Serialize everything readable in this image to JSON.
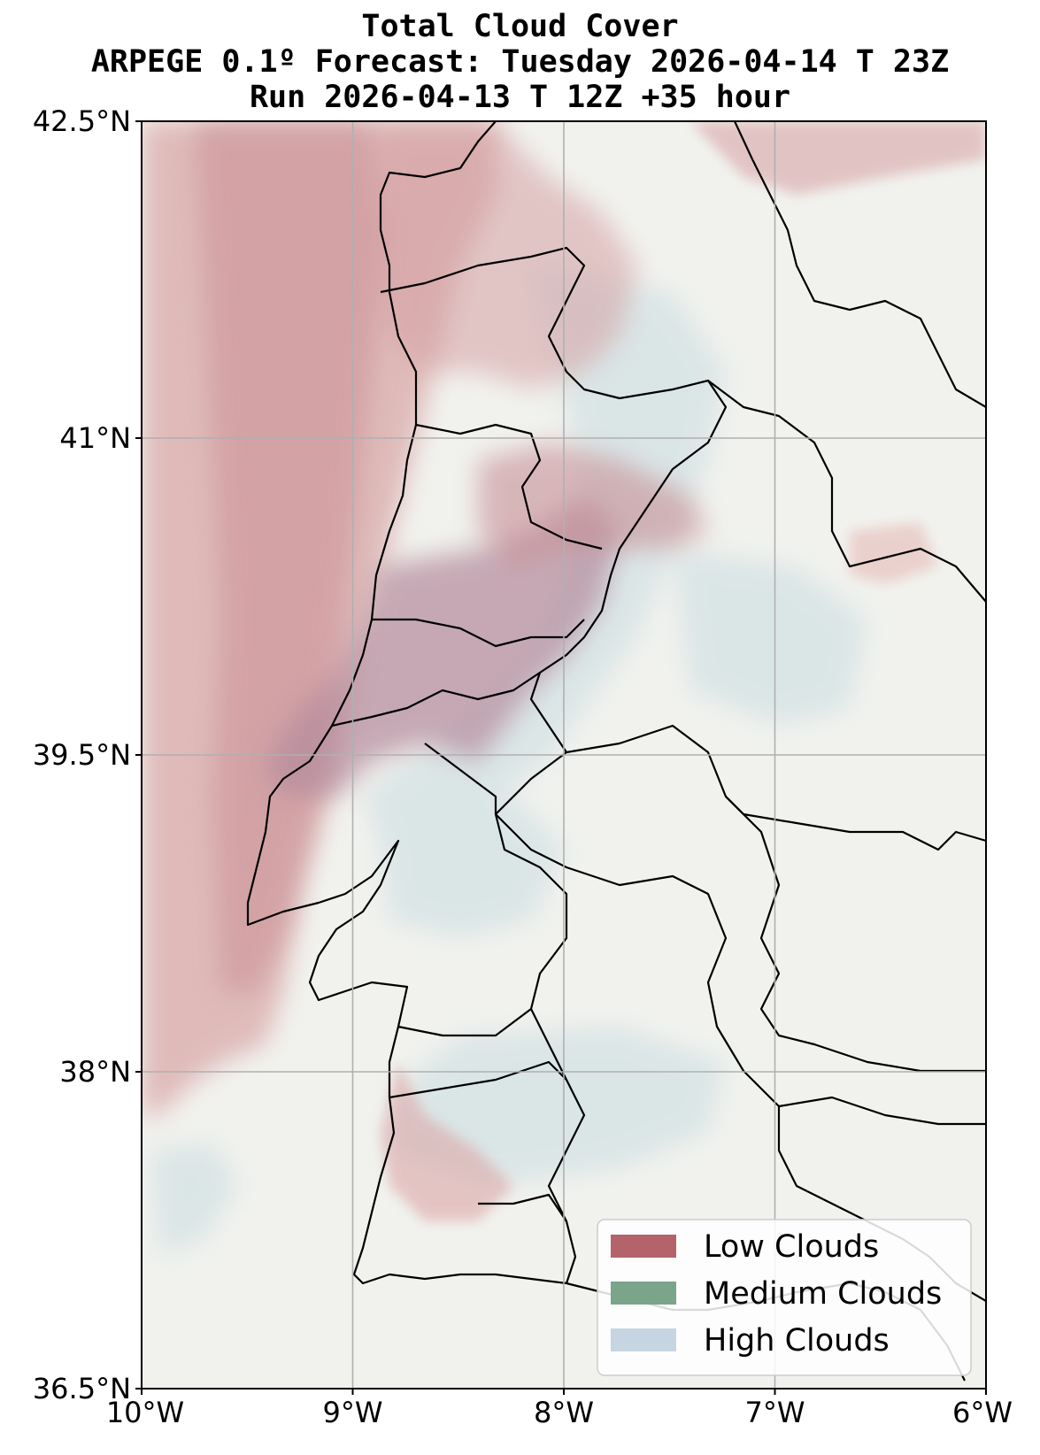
{
  "title": {
    "line1": "Total Cloud Cover",
    "line2": "ARPEGE 0.1º Forecast: Tuesday 2026-04-14 T 23Z",
    "line3": "Run 2026-04-13 T 12Z +35 hour"
  },
  "map": {
    "lon_range": [
      -10,
      -6
    ],
    "lat_range": [
      36.5,
      42.5
    ],
    "lon_ticks": [
      {
        "value": -10,
        "label": "10°W"
      },
      {
        "value": -9,
        "label": "9°W"
      },
      {
        "value": -8,
        "label": "8°W"
      },
      {
        "value": -7,
        "label": "7°W"
      },
      {
        "value": -6,
        "label": "6°W"
      }
    ],
    "lat_ticks": [
      {
        "value": 42.5,
        "label": "42.5°N"
      },
      {
        "value": 41,
        "label": "41°N"
      },
      {
        "value": 39.5,
        "label": "39.5°N"
      },
      {
        "value": 38,
        "label": "38°N"
      },
      {
        "value": 36.5,
        "label": "36.5°N"
      }
    ],
    "grid": true,
    "background_color": "#f1f2ee"
  },
  "legend": {
    "placement": "bottom-right",
    "items": [
      {
        "label": "Low Clouds",
        "color": "#b5636b"
      },
      {
        "label": "Medium Clouds",
        "color": "#7aa58a"
      },
      {
        "label": "High Clouds",
        "color": "#c7d4e2"
      }
    ]
  }
}
